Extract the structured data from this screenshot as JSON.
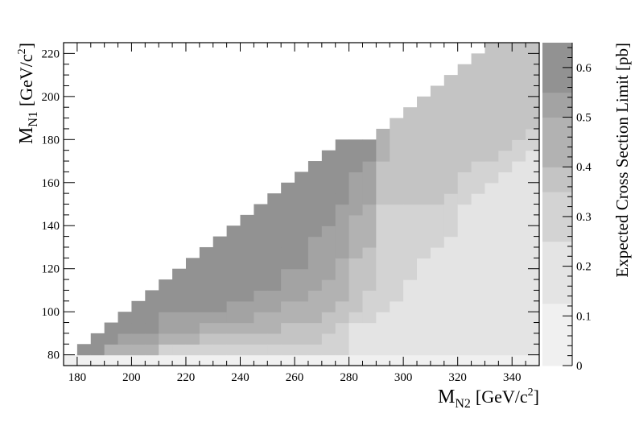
{
  "chart_data": {
    "type": "heatmap",
    "title": "",
    "xlabel": {
      "base": "M",
      "sub": "N2",
      "unit_pre": "[GeV/c",
      "unit_sup": "2",
      "unit_post": "]"
    },
    "ylabel": {
      "base": "M",
      "sub": "N1",
      "unit_pre": "[GeV/c",
      "unit_sup": "2",
      "unit_post": "]"
    },
    "zlabel": "Expected Cross Section Limit [pb]",
    "xlim": [
      175,
      350
    ],
    "ylim": [
      75,
      225
    ],
    "zlim": [
      0,
      0.65
    ],
    "x_ticks": [
      180,
      200,
      220,
      240,
      260,
      280,
      300,
      320,
      340
    ],
    "y_ticks": [
      80,
      100,
      120,
      140,
      160,
      180,
      200,
      220
    ],
    "z_ticks": [
      0,
      0.1,
      0.2,
      0.3,
      0.4,
      0.5,
      0.6
    ],
    "cell_size": 5,
    "diagonal_offset": 100,
    "z_levels": [
      0.05,
      0.15,
      0.25,
      0.35,
      0.45,
      0.55,
      0.62
    ],
    "level_colors": [
      "#f0f0f0",
      "#e4e4e4",
      "#d3d3d3",
      "#c4c4c4",
      "#b2b2b2",
      "#a3a3a3",
      "#929292"
    ],
    "columns": [
      {
        "x": 175,
        "ymax": 80,
        "bounds": [
          80,
          80,
          80,
          80,
          80,
          80,
          80
        ]
      },
      {
        "x": 180,
        "ymax": 85,
        "bounds": [
          80,
          80,
          80,
          80,
          80,
          80,
          80
        ]
      },
      {
        "x": 185,
        "ymax": 90,
        "bounds": [
          80,
          80,
          80,
          80,
          80,
          80,
          80
        ]
      },
      {
        "x": 190,
        "ymax": 95,
        "bounds": [
          80,
          80,
          80,
          80,
          85,
          85,
          85
        ]
      },
      {
        "x": 195,
        "ymax": 100,
        "bounds": [
          80,
          80,
          80,
          80,
          85,
          90,
          95
        ]
      },
      {
        "x": 200,
        "ymax": 105,
        "bounds": [
          80,
          80,
          80,
          80,
          85,
          90,
          95
        ]
      },
      {
        "x": 205,
        "ymax": 110,
        "bounds": [
          80,
          80,
          80,
          80,
          85,
          90,
          95
        ]
      },
      {
        "x": 210,
        "ymax": 115,
        "bounds": [
          80,
          80,
          85,
          85,
          90,
          100,
          105
        ]
      },
      {
        "x": 215,
        "ymax": 120,
        "bounds": [
          80,
          80,
          85,
          85,
          90,
          100,
          105
        ]
      },
      {
        "x": 220,
        "ymax": 125,
        "bounds": [
          80,
          80,
          85,
          85,
          90,
          100,
          110
        ]
      },
      {
        "x": 225,
        "ymax": 130,
        "bounds": [
          80,
          80,
          85,
          90,
          95,
          100,
          110
        ]
      },
      {
        "x": 230,
        "ymax": 135,
        "bounds": [
          80,
          80,
          85,
          90,
          95,
          100,
          110
        ]
      },
      {
        "x": 235,
        "ymax": 140,
        "bounds": [
          80,
          80,
          85,
          90,
          95,
          105,
          110
        ]
      },
      {
        "x": 240,
        "ymax": 145,
        "bounds": [
          80,
          80,
          85,
          90,
          95,
          105,
          110
        ]
      },
      {
        "x": 245,
        "ymax": 150,
        "bounds": [
          80,
          80,
          85,
          90,
          100,
          110,
          120
        ]
      },
      {
        "x": 250,
        "ymax": 155,
        "bounds": [
          80,
          80,
          85,
          90,
          100,
          110,
          125
        ]
      },
      {
        "x": 255,
        "ymax": 160,
        "bounds": [
          80,
          80,
          85,
          95,
          105,
          120,
          130
        ]
      },
      {
        "x": 260,
        "ymax": 165,
        "bounds": [
          80,
          80,
          85,
          95,
          105,
          120,
          135
        ]
      },
      {
        "x": 265,
        "ymax": 170,
        "bounds": [
          80,
          80,
          85,
          95,
          110,
          135,
          150
        ]
      },
      {
        "x": 270,
        "ymax": 175,
        "bounds": [
          80,
          80,
          90,
          100,
          115,
          140,
          155
        ]
      },
      {
        "x": 275,
        "ymax": 180,
        "bounds": [
          80,
          80,
          95,
          105,
          125,
          150,
          160
        ]
      },
      {
        "x": 280,
        "ymax": 180,
        "bounds": [
          80,
          95,
          100,
          125,
          145,
          165,
          165
        ]
      },
      {
        "x": 285,
        "ymax": 180,
        "bounds": [
          80,
          95,
          110,
          130,
          150,
          170,
          170
        ]
      },
      {
        "x": 290,
        "ymax": 185,
        "bounds": [
          80,
          100,
          150,
          170,
          185,
          185,
          185
        ]
      },
      {
        "x": 295,
        "ymax": 190,
        "bounds": [
          80,
          105,
          150,
          190,
          190,
          190,
          190
        ]
      },
      {
        "x": 300,
        "ymax": 195,
        "bounds": [
          80,
          115,
          150,
          195,
          195,
          195,
          195
        ]
      },
      {
        "x": 305,
        "ymax": 200,
        "bounds": [
          80,
          125,
          150,
          200,
          200,
          200,
          200
        ]
      },
      {
        "x": 310,
        "ymax": 205,
        "bounds": [
          80,
          130,
          150,
          205,
          205,
          205,
          205
        ]
      },
      {
        "x": 315,
        "ymax": 210,
        "bounds": [
          80,
          135,
          155,
          210,
          210,
          210,
          210
        ]
      },
      {
        "x": 320,
        "ymax": 215,
        "bounds": [
          80,
          150,
          165,
          215,
          215,
          215,
          215
        ]
      },
      {
        "x": 325,
        "ymax": 220,
        "bounds": [
          80,
          155,
          170,
          220,
          220,
          220,
          220
        ]
      },
      {
        "x": 330,
        "ymax": 225,
        "bounds": [
          80,
          160,
          170,
          225,
          225,
          225,
          225
        ]
      },
      {
        "x": 335,
        "ymax": 225,
        "bounds": [
          80,
          165,
          175,
          225,
          225,
          225,
          225
        ]
      },
      {
        "x": 340,
        "ymax": 225,
        "bounds": [
          80,
          170,
          180,
          225,
          225,
          225,
          225
        ]
      },
      {
        "x": 345,
        "ymax": 225,
        "bounds": [
          80,
          175,
          185,
          225,
          225,
          225,
          225
        ]
      }
    ]
  }
}
